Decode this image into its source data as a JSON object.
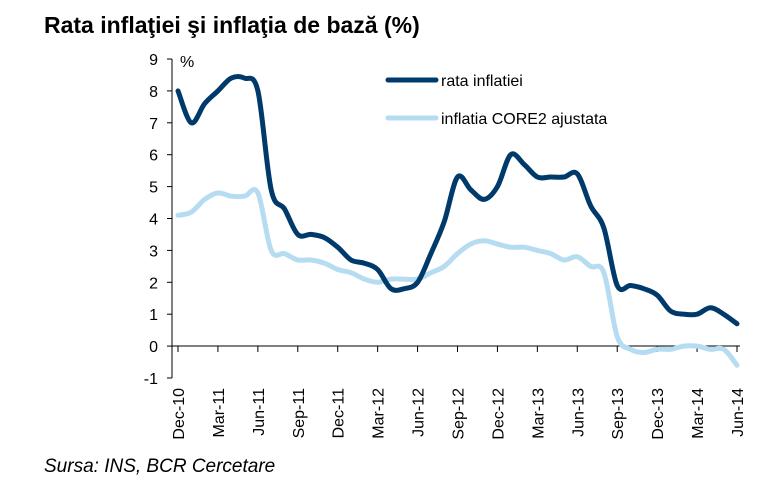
{
  "header": {
    "title": "Rata inflaţiei şi inflaţia de bază (%)"
  },
  "footer": {
    "source": "Sursa: INS, BCR Cercetare"
  },
  "chart_data": {
    "type": "line",
    "title": "Rata inflaţiei şi inflaţia de bază (%)",
    "ylabel": "%",
    "ylim": [
      -1,
      9
    ],
    "yticks": [
      "-1",
      "0",
      "1",
      "2",
      "3",
      "4",
      "5",
      "6",
      "7",
      "8",
      "9"
    ],
    "xtick_labels": [
      "Dec-10",
      "Mar-11",
      "Jun-11",
      "Sep-11",
      "Dec-11",
      "Mar-12",
      "Jun-12",
      "Sep-12",
      "Dec-12",
      "Mar-13",
      "Jun-13",
      "Sep-13",
      "Dec-13",
      "Mar-14",
      "Jun-14"
    ],
    "legend_position": "top-right",
    "categories": [
      "Dec-10",
      "Jan-11",
      "Feb-11",
      "Mar-11",
      "Apr-11",
      "May-11",
      "Jun-11",
      "Jul-11",
      "Aug-11",
      "Sep-11",
      "Oct-11",
      "Nov-11",
      "Dec-11",
      "Jan-12",
      "Feb-12",
      "Mar-12",
      "Apr-12",
      "May-12",
      "Jun-12",
      "Jul-12",
      "Aug-12",
      "Sep-12",
      "Oct-12",
      "Nov-12",
      "Dec-12",
      "Jan-13",
      "Feb-13",
      "Mar-13",
      "Apr-13",
      "May-13",
      "Jun-13",
      "Jul-13",
      "Aug-13",
      "Sep-13",
      "Oct-13",
      "Nov-13",
      "Dec-13",
      "Jan-14",
      "Feb-14",
      "Mar-14",
      "Apr-14",
      "May-14",
      "Jun-14"
    ],
    "series": [
      {
        "name": "rata inflatiei",
        "color": "#003a6b",
        "values": [
          8.0,
          7.0,
          7.6,
          8.0,
          8.4,
          8.4,
          8.0,
          4.9,
          4.3,
          3.5,
          3.5,
          3.4,
          3.1,
          2.7,
          2.6,
          2.4,
          1.8,
          1.8,
          2.0,
          2.9,
          3.9,
          5.3,
          4.9,
          4.6,
          5.0,
          6.0,
          5.7,
          5.3,
          5.3,
          5.3,
          5.4,
          4.4,
          3.7,
          1.9,
          1.9,
          1.8,
          1.6,
          1.1,
          1.0,
          1.0,
          1.2,
          1.0,
          0.7
        ]
      },
      {
        "name": "inflatia CORE2 ajustata",
        "color": "#b6dcf2",
        "values": [
          4.1,
          4.2,
          4.6,
          4.8,
          4.7,
          4.7,
          4.8,
          3.0,
          2.9,
          2.7,
          2.7,
          2.6,
          2.4,
          2.3,
          2.1,
          2.0,
          2.1,
          2.1,
          2.1,
          2.3,
          2.5,
          2.9,
          3.2,
          3.3,
          3.2,
          3.1,
          3.1,
          3.0,
          2.9,
          2.7,
          2.8,
          2.5,
          2.3,
          0.3,
          -0.1,
          -0.2,
          -0.1,
          -0.1,
          0.0,
          0.0,
          -0.1,
          -0.1,
          -0.6
        ]
      }
    ]
  }
}
